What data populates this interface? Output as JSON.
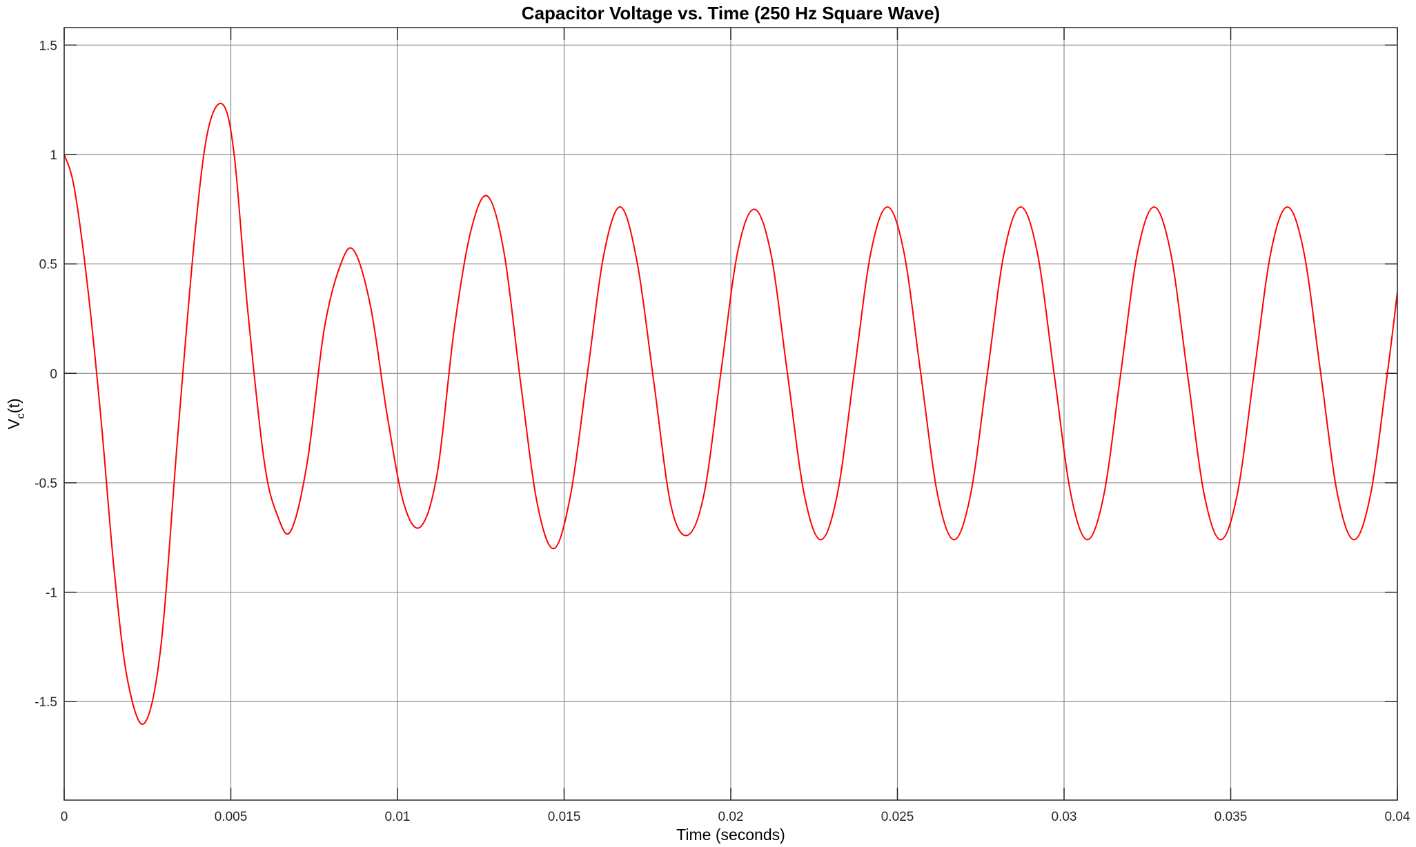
{
  "chart_data": {
    "type": "line",
    "title": "Capacitor Voltage vs. Time (250 Hz Square Wave)",
    "xlabel": "Time (seconds)",
    "ylabel_main": "V",
    "ylabel_sub": "c",
    "ylabel_tail": "(t)",
    "xlim": [
      0,
      0.04
    ],
    "ylim": [
      -1.95,
      1.58
    ],
    "grid": true,
    "x_ticks": [
      0,
      0.005,
      0.01,
      0.015,
      0.02,
      0.025,
      0.03,
      0.035,
      0.04
    ],
    "x_tick_labels": [
      "0",
      "0.005",
      "0.01",
      "0.015",
      "0.02",
      "0.025",
      "0.03",
      "0.035",
      "0.04"
    ],
    "y_ticks": [
      1.5,
      1,
      0.5,
      0,
      -0.5,
      -1,
      -1.5
    ],
    "y_tick_labels": [
      "1.5",
      "1",
      "0.5",
      "0",
      "-0.5",
      "-1",
      "-1.5"
    ],
    "series": [
      {
        "color": "#ff0000",
        "x": [
          0,
          0.0003,
          0.0007,
          0.0011,
          0.0015,
          0.0019,
          0.0024,
          0.0029,
          0.0034,
          0.0039,
          0.0043,
          0.00475,
          0.0051,
          0.0055,
          0.006,
          0.0064,
          0.0068,
          0.0073,
          0.0078,
          0.0083,
          0.0087,
          0.0092,
          0.0097,
          0.0102,
          0.0107,
          0.0112,
          0.0117,
          0.0122,
          0.0127,
          0.0132,
          0.0137,
          0.0142,
          0.0147,
          0.0152,
          0.0157,
          0.0162,
          0.0167,
          0.0172,
          0.0177,
          0.0182,
          0.0187,
          0.0192,
          0.0197,
          0.0202,
          0.0207,
          0.0212,
          0.0217,
          0.0222,
          0.0227,
          0.0232,
          0.0237,
          0.0242,
          0.0247,
          0.0252,
          0.0257,
          0.0262,
          0.0267,
          0.0272,
          0.0277,
          0.0282,
          0.0287,
          0.0292,
          0.0297,
          0.0302,
          0.0307,
          0.0312,
          0.0317,
          0.0322,
          0.0327,
          0.0332,
          0.0337,
          0.0342,
          0.0347,
          0.0352,
          0.0357,
          0.0362,
          0.0367,
          0.0372,
          0.0377,
          0.0382,
          0.0387,
          0.0392,
          0.0397,
          0.04
        ],
        "y": [
          1.0,
          0.85,
          0.4,
          -0.2,
          -0.9,
          -1.4,
          -1.6,
          -1.25,
          -0.3,
          0.6,
          1.1,
          1.23,
          1.0,
          0.3,
          -0.4,
          -0.65,
          -0.72,
          -0.4,
          0.2,
          0.5,
          0.56,
          0.3,
          -0.2,
          -0.6,
          -0.7,
          -0.45,
          0.2,
          0.65,
          0.81,
          0.55,
          -0.05,
          -0.6,
          -0.8,
          -0.55,
          0.0,
          0.55,
          0.76,
          0.5,
          -0.05,
          -0.6,
          -0.74,
          -0.55,
          0.0,
          0.55,
          0.75,
          0.55,
          0.0,
          -0.55,
          -0.76,
          -0.55,
          0.0,
          0.55,
          0.76,
          0.55,
          0.0,
          -0.55,
          -0.76,
          -0.55,
          0.0,
          0.55,
          0.76,
          0.55,
          0.0,
          -0.55,
          -0.76,
          -0.55,
          0.0,
          0.55,
          0.76,
          0.55,
          0.0,
          -0.55,
          -0.76,
          -0.55,
          0.0,
          0.55,
          0.76,
          0.55,
          0.0,
          -0.55,
          -0.76,
          -0.55,
          0.0,
          0.37
        ]
      }
    ]
  }
}
